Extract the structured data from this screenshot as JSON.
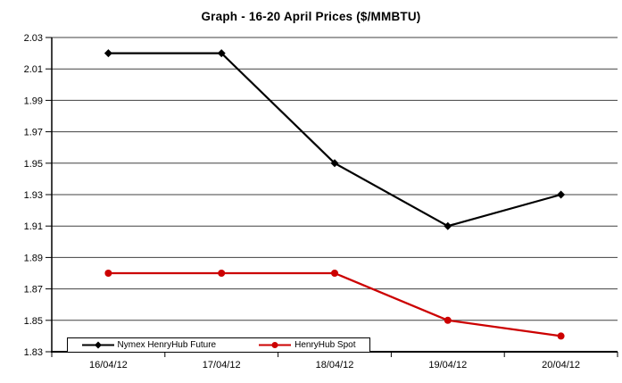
{
  "chart_data": {
    "type": "line",
    "title": "Graph - 16-20 April Prices ($/MMBTU)",
    "categories": [
      "16/04/12",
      "17/04/12",
      "18/04/12",
      "19/04/12",
      "20/04/12"
    ],
    "series": [
      {
        "name": "Nymex HenryHub Future",
        "color": "#000000",
        "marker": "diamond",
        "values": [
          2.02,
          2.02,
          1.95,
          1.91,
          1.93
        ]
      },
      {
        "name": "HenryHub Spot",
        "color": "#cc0000",
        "marker": "circle",
        "values": [
          1.88,
          1.88,
          1.88,
          1.85,
          1.84
        ]
      }
    ],
    "ylim": [
      1.83,
      2.03
    ],
    "ytick_step": 0.02,
    "yticks": [
      "2.03",
      "2.01",
      "1.99",
      "1.97",
      "1.95",
      "1.93",
      "1.91",
      "1.89",
      "1.87",
      "1.85",
      "1.83"
    ],
    "xlabel": "",
    "ylabel": "",
    "grid": true,
    "legend_position": "bottom-left",
    "axis_color": "#000000",
    "gridline_color": "#404040",
    "background": "#ffffff"
  }
}
